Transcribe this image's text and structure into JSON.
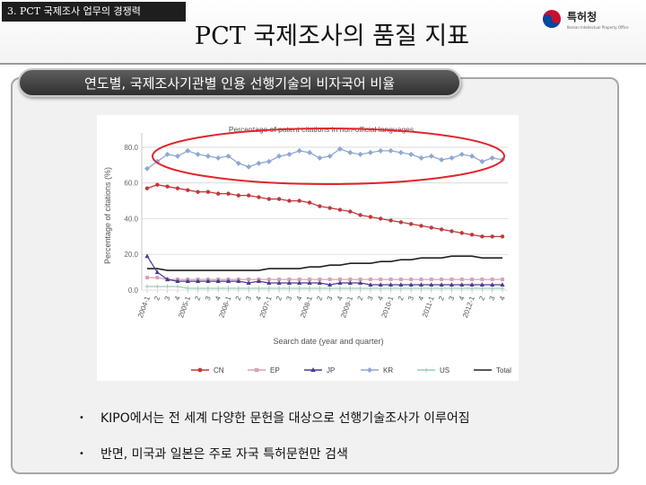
{
  "header": {
    "section_label": "3. PCT 국제조사 업무의 경쟁력",
    "title": "PCT 국제조사의 품질 지표",
    "logo_text": "특허청",
    "logo_sub": "Korean Intellectual Property Office"
  },
  "banner": {
    "label": "연도별, 국제조사기관별 인용 선행기술의 비자국어 비율"
  },
  "colors": {
    "CN": "#c0393b",
    "EP": "#d9a0b4",
    "JP": "#4a3d8f",
    "KR": "#8fa7d4",
    "US": "#9ccbb5",
    "Total": "#222222",
    "highlight": "#e0262a"
  },
  "chart_data": {
    "type": "line",
    "title": "Percentage of patent citations in non-official languages",
    "xlabel": "Search date (year and quarter)",
    "ylabel": "Percentage of citations (%)",
    "ylim": [
      0,
      85
    ],
    "ytick_labels": [
      "0.0",
      "20.0",
      "40.0",
      "60.0",
      "80.0"
    ],
    "ytick_values": [
      0,
      20,
      40,
      60,
      80
    ],
    "categories": [
      "2004-1",
      "2",
      "3",
      "4",
      "2005-1",
      "2",
      "3",
      "4",
      "2006-1",
      "2",
      "3",
      "4",
      "2007-1",
      "2",
      "3",
      "4",
      "2008-1",
      "2",
      "3",
      "4",
      "2009-1",
      "2",
      "3",
      "4",
      "2010-1",
      "2",
      "3",
      "4",
      "2011-1",
      "2",
      "3",
      "4",
      "2012-1",
      "2",
      "3",
      "4"
    ],
    "legend_position": "bottom",
    "series": [
      {
        "name": "CN",
        "values": [
          57,
          59,
          58,
          57,
          56,
          55,
          55,
          54,
          54,
          53,
          53,
          52,
          51,
          51,
          50,
          50,
          49,
          47,
          46,
          45,
          44,
          42,
          41,
          40,
          39,
          38,
          37,
          36,
          35,
          34,
          33,
          32,
          31,
          30,
          30,
          30
        ]
      },
      {
        "name": "EP",
        "values": [
          7,
          7,
          6,
          6,
          6,
          6,
          6,
          6,
          6,
          6,
          6,
          6,
          6,
          6,
          6,
          6,
          6,
          6,
          6,
          6,
          6,
          6,
          6,
          6,
          6,
          6,
          6,
          6,
          6,
          6,
          6,
          6,
          6,
          6,
          6,
          6
        ]
      },
      {
        "name": "JP",
        "values": [
          19,
          10,
          6,
          5,
          5,
          5,
          5,
          5,
          5,
          5,
          4,
          5,
          4,
          4,
          4,
          4,
          4,
          4,
          3,
          4,
          4,
          4,
          3,
          3,
          3,
          3,
          3,
          3,
          3,
          3,
          3,
          3,
          3,
          3,
          3,
          3
        ]
      },
      {
        "name": "KR",
        "values": [
          68,
          72,
          76,
          75,
          78,
          76,
          75,
          74,
          75,
          71,
          69,
          71,
          72,
          75,
          76,
          78,
          77,
          74,
          75,
          79,
          77,
          76,
          77,
          78,
          78,
          77,
          76,
          74,
          75,
          73,
          74,
          76,
          75,
          72,
          74,
          73
        ]
      },
      {
        "name": "US",
        "values": [
          2,
          2,
          2,
          2,
          1,
          1,
          1,
          1,
          1,
          1,
          1,
          1,
          1,
          1,
          1,
          1,
          1,
          1,
          1,
          1,
          1,
          1,
          1,
          1,
          1,
          1,
          1,
          1,
          1,
          1,
          1,
          1,
          1,
          1,
          1,
          1
        ]
      },
      {
        "name": "Total",
        "values": [
          12,
          12,
          11,
          11,
          11,
          11,
          11,
          11,
          11,
          11,
          11,
          11,
          12,
          12,
          12,
          12,
          13,
          13,
          14,
          14,
          15,
          15,
          15,
          16,
          16,
          17,
          17,
          18,
          18,
          18,
          19,
          19,
          19,
          18,
          18,
          18
        ]
      }
    ]
  },
  "bullets": [
    {
      "marker": "•",
      "text": "KIPO에서는 전 세계 다양한 문헌을 대상으로 선행기술조사가 이루어짐"
    },
    {
      "marker": "•",
      "text": "반면, 미국과 일본은 주로 자국 특허문헌만 검색"
    }
  ]
}
